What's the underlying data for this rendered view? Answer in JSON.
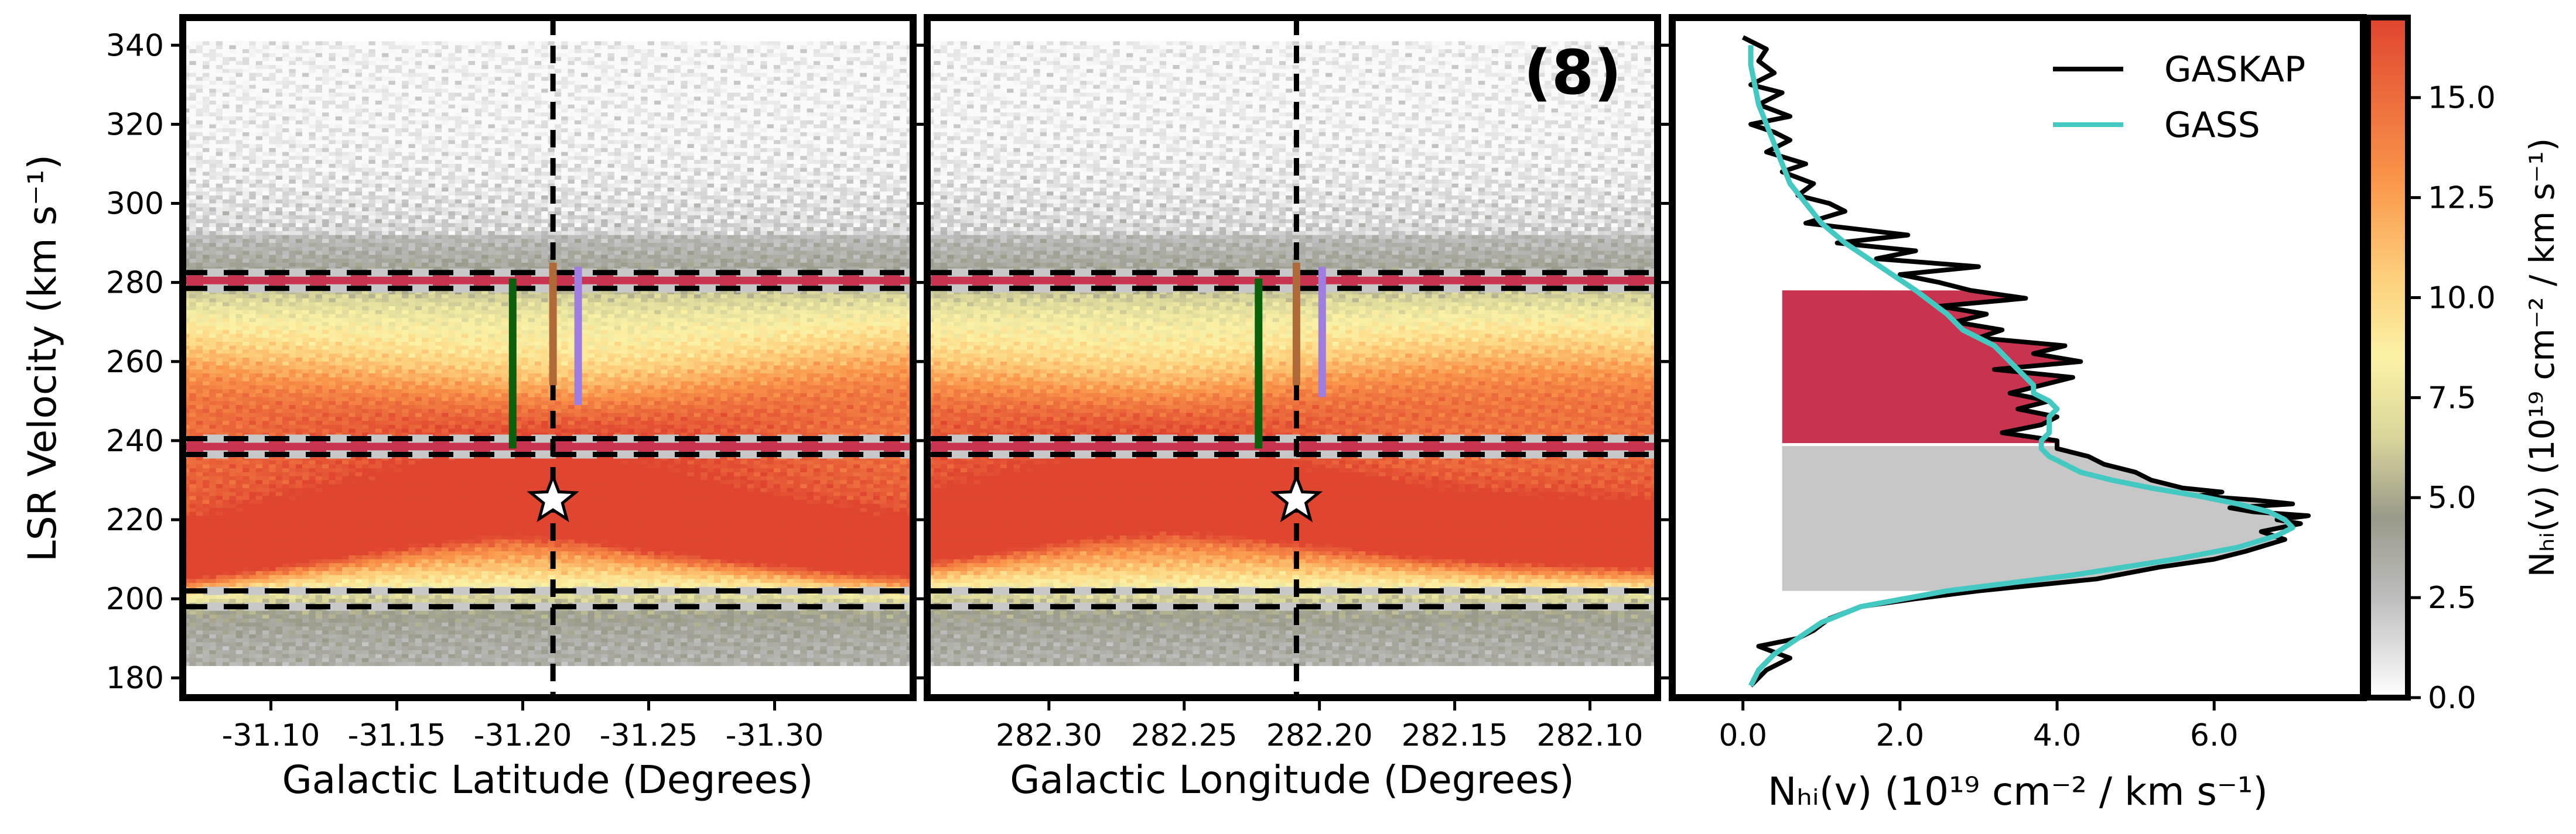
{
  "figure": {
    "panel_label": "(8)",
    "shared_ylabel": "LSR Velocity (km s⁻¹)"
  },
  "colors": {
    "band_red": "#c8344f",
    "band_gray": "#c7c7c7",
    "gaskap": "#000000",
    "gass": "#44c9c2",
    "marker_green": "#0b5f0b",
    "marker_brown": "#b06a38",
    "marker_purple": "#a07ee0"
  },
  "chart_data": [
    {
      "type": "heatmap",
      "title": "",
      "xlabel": "Galactic Latitude (Degrees)",
      "ylabel": "LSR Velocity (km s⁻¹)",
      "xlim": [
        -31.065,
        -31.355
      ],
      "ylim": [
        175,
        347
      ],
      "x_ticks": [
        -31.1,
        -31.15,
        -31.2,
        -31.25,
        -31.3
      ],
      "x_tick_labels": [
        "-31.10",
        "-31.15",
        "-31.20",
        "-31.25",
        "-31.30"
      ],
      "y_ticks": [
        180,
        200,
        220,
        240,
        260,
        280,
        300,
        320,
        340
      ],
      "y_tick_labels": [
        "180",
        "200",
        "220",
        "240",
        "260",
        "280",
        "300",
        "320",
        "340"
      ],
      "source_position": -31.212,
      "source_velocity": 225,
      "window_velocity_bounds": [
        [
          198,
          202
        ],
        [
          236.5,
          240.5
        ],
        [
          278.5,
          282.5
        ]
      ],
      "red_band_velocity": [
        [
          279.2,
          281.8
        ],
        [
          237.2,
          239.8
        ]
      ],
      "marker_lines": [
        {
          "color": "green",
          "x": -31.196,
          "v_range": [
            238,
            281
          ]
        },
        {
          "color": "brown",
          "x": -31.212,
          "v_range": [
            254,
            285
          ]
        },
        {
          "color": "purple",
          "x": -31.222,
          "v_range": [
            249,
            284
          ]
        }
      ],
      "emission_ridges": [
        {
          "v_center": [
            210,
            214,
            218,
            222,
            225,
            223,
            219,
            216,
            213,
            211
          ],
          "peak": 13.5
        },
        {
          "v_center": [
            252,
            250,
            248,
            246,
            244,
            243,
            245,
            248,
            251,
            253
          ],
          "peak": 8.0
        }
      ]
    },
    {
      "type": "heatmap",
      "title": "",
      "xlabel": "Galactic Longitude (Degrees)",
      "ylabel": "",
      "xlim": [
        282.345,
        282.075
      ],
      "ylim": [
        175,
        347
      ],
      "x_ticks": [
        282.3,
        282.25,
        282.2,
        282.15,
        282.1
      ],
      "x_tick_labels": [
        "282.30",
        "282.25",
        "282.20",
        "282.15",
        "282.10"
      ],
      "y_ticks": [
        180,
        200,
        220,
        240,
        260,
        280,
        300,
        320,
        340
      ],
      "source_position": 282.2085,
      "source_velocity": 225,
      "window_velocity_bounds": [
        [
          198,
          202
        ],
        [
          236.5,
          240.5
        ],
        [
          278.5,
          282.5
        ]
      ],
      "red_band_velocity": [
        [
          279.2,
          281.8
        ],
        [
          237.2,
          239.8
        ]
      ],
      "marker_lines": [
        {
          "color": "green",
          "x": 282.2225,
          "v_range": [
            238,
            281
          ]
        },
        {
          "color": "brown",
          "x": 282.2085,
          "v_range": [
            254,
            285
          ]
        },
        {
          "color": "purple",
          "x": 282.199,
          "v_range": [
            251,
            284
          ]
        }
      ],
      "emission_ridges": [
        {
          "v_center": [
            216,
            220,
            224,
            226,
            224,
            221,
            218,
            216,
            215,
            214
          ],
          "peak": 13.5
        },
        {
          "v_center": [
            248,
            247,
            245,
            244,
            246,
            249,
            251,
            252,
            252,
            251
          ],
          "peak": 8.0
        }
      ]
    },
    {
      "type": "line",
      "title": "",
      "xlabel": "Nₕᵢ(v) (10¹⁹ cm⁻² / km s⁻¹)",
      "ylabel": "",
      "xlim": [
        -0.9,
        7.9
      ],
      "ylim": [
        175,
        347
      ],
      "x_ticks": [
        0.0,
        2.0,
        4.0,
        6.0
      ],
      "x_tick_labels": [
        "0.0",
        "2.0",
        "4.0",
        "6.0"
      ],
      "legend_position": "top-right",
      "shaded_regions": [
        {
          "color": "red",
          "v_range": [
            239,
            278
          ]
        },
        {
          "color": "gray",
          "v_range": [
            202,
            239
          ]
        }
      ],
      "series": [
        {
          "name": "GASKAP",
          "v": [
            178,
            182,
            185,
            188,
            190,
            192,
            195,
            198,
            200,
            202,
            205,
            208,
            210,
            212,
            215,
            217,
            219,
            220,
            221,
            222,
            223,
            224,
            225,
            226,
            227,
            228,
            230,
            232,
            234,
            236,
            238,
            240,
            242,
            244,
            246,
            248,
            250,
            252,
            254,
            256,
            258,
            260,
            262,
            264,
            266,
            268,
            270,
            272,
            274,
            276,
            278,
            280,
            282,
            284,
            286,
            288,
            290,
            292,
            295,
            298,
            300,
            302,
            305,
            308,
            310,
            313,
            316,
            318,
            320,
            322,
            325,
            328,
            330,
            333,
            336,
            339,
            342
          ],
          "values": [
            0.1,
            0.3,
            0.6,
            0.2,
            0.7,
            0.9,
            1.1,
            1.5,
            2.2,
            3.0,
            4.5,
            5.3,
            6.0,
            6.4,
            6.9,
            6.6,
            7.1,
            6.8,
            7.2,
            6.5,
            6.2,
            7.0,
            6.5,
            5.8,
            6.1,
            5.6,
            5.2,
            5.0,
            4.6,
            4.4,
            4.0,
            4.0,
            3.3,
            3.8,
            4.0,
            3.5,
            3.9,
            3.4,
            3.8,
            4.2,
            3.2,
            4.3,
            3.7,
            4.1,
            3.0,
            3.3,
            2.7,
            3.1,
            2.5,
            3.6,
            2.9,
            2.5,
            2.0,
            3.0,
            1.7,
            2.2,
            1.2,
            2.1,
            0.8,
            1.3,
            1.1,
            0.7,
            0.9,
            0.5,
            0.8,
            0.3,
            0.6,
            0.4,
            0.1,
            0.6,
            0.2,
            0.5,
            0.1,
            0.4,
            0.2,
            0.3,
            0.0
          ]
        },
        {
          "name": "GASS",
          "v": [
            178,
            182,
            186,
            190,
            194,
            198,
            202,
            206,
            210,
            213,
            216,
            218,
            220,
            222,
            224,
            226,
            228,
            230,
            232,
            234,
            236,
            238,
            240,
            242,
            244,
            246,
            248,
            250,
            252,
            254,
            256,
            258,
            260,
            262,
            264,
            266,
            268,
            270,
            272,
            275,
            278,
            282,
            286,
            290,
            295,
            300,
            305,
            310,
            315,
            320,
            325,
            330,
            335,
            340
          ],
          "values": [
            0.1,
            0.2,
            0.4,
            0.7,
            1.0,
            1.5,
            2.6,
            4.2,
            5.5,
            6.3,
            6.8,
            7.0,
            6.9,
            6.7,
            6.3,
            5.8,
            5.2,
            4.7,
            4.3,
            4.1,
            3.9,
            3.8,
            3.8,
            3.9,
            3.9,
            3.9,
            4.0,
            3.9,
            3.7,
            3.7,
            3.6,
            3.5,
            3.4,
            3.3,
            3.2,
            3.0,
            2.8,
            2.7,
            2.6,
            2.4,
            2.2,
            1.9,
            1.6,
            1.3,
            1.0,
            0.8,
            0.6,
            0.5,
            0.4,
            0.3,
            0.2,
            0.15,
            0.1,
            0.1
          ]
        }
      ]
    },
    {
      "type": "heatmap",
      "title": "colorbar",
      "ylabel": "Nₕᵢ(v) (10¹⁹ cm⁻² / km s⁻¹)",
      "vmin": 0.0,
      "vmax": 17.0,
      "ticks": [
        0.0,
        2.5,
        5.0,
        7.5,
        10.0,
        12.5,
        15.0
      ],
      "tick_labels": [
        "0.0",
        "2.5",
        "5.0",
        "7.5",
        "10.0",
        "12.5",
        "15.0"
      ],
      "colormap": [
        {
          "v": 0.0,
          "color": "#ffffff"
        },
        {
          "v": 2.5,
          "color": "#bdbdbd"
        },
        {
          "v": 4.5,
          "color": "#9a9a8a"
        },
        {
          "v": 6.5,
          "color": "#d9d69a"
        },
        {
          "v": 8.5,
          "color": "#fbf2a6"
        },
        {
          "v": 10.5,
          "color": "#fdd07c"
        },
        {
          "v": 13.0,
          "color": "#f9944a"
        },
        {
          "v": 17.0,
          "color": "#e0452f"
        }
      ]
    }
  ]
}
